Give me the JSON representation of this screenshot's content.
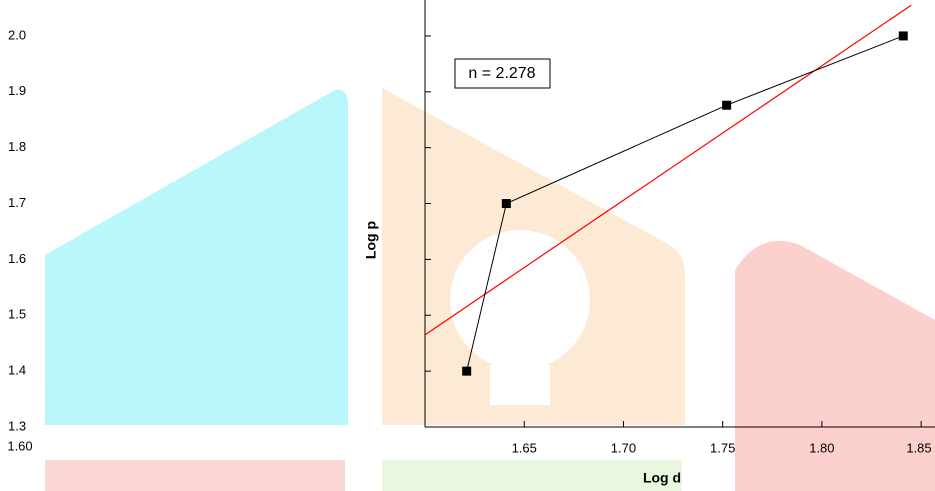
{
  "chart_data": {
    "type": "line",
    "x_label": "Log d",
    "y_label": "Log p",
    "annotation": "n = 2.278",
    "x": [
      1.621,
      1.641,
      1.752,
      1.841
    ],
    "series": [
      {
        "name": "Log p",
        "color": "#000000",
        "values": [
          1.4,
          1.7,
          1.876,
          2.0
        ]
      }
    ],
    "fit_line": {
      "color": "#ff0000",
      "x": [
        1.6,
        1.845
      ],
      "values": [
        1.465,
        2.055
      ]
    },
    "xlim": [
      1.6,
      1.857
    ],
    "ylim": [
      1.3,
      2.05
    ],
    "xticks": [
      {
        "value": 1.6,
        "label": "1.60"
      },
      1.65,
      {
        "value": 1.7,
        "label": "1.70"
      },
      1.75,
      {
        "value": 1.8,
        "label": "1.80"
      },
      1.85
    ],
    "yticks": [
      1.3,
      1.4,
      1.5,
      1.6,
      1.7,
      1.8,
      1.9,
      {
        "value": 2.0,
        "label": "2.0"
      }
    ]
  }
}
